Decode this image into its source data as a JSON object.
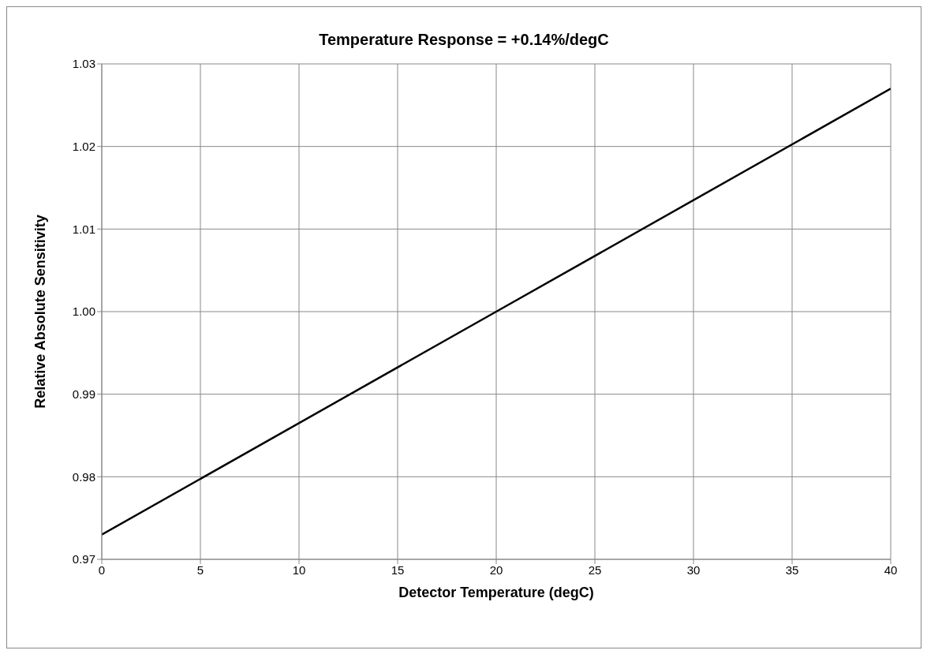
{
  "chart_data": {
    "type": "line",
    "title": "Temperature Response = +0.14%/degC",
    "xlabel": "Detector Temperature (degC)",
    "ylabel": "Relative Absolute Sensitivity",
    "x": [
      0,
      20,
      40
    ],
    "series": [
      {
        "color": "#000000",
        "values": [
          0.973,
          1.0,
          1.027
        ]
      }
    ],
    "xlim": [
      0,
      40
    ],
    "xticks": [
      0,
      5,
      10,
      15,
      20,
      25,
      30,
      35,
      40
    ],
    "ylim": [
      0.97,
      1.03
    ],
    "yticks": [
      0.97,
      0.98,
      0.99,
      {
        "value": 1.0,
        "label": "1.00"
      },
      1.01,
      1.02,
      1.03
    ],
    "grid": true,
    "legend": false,
    "marker": "none",
    "line_style": "solid"
  }
}
